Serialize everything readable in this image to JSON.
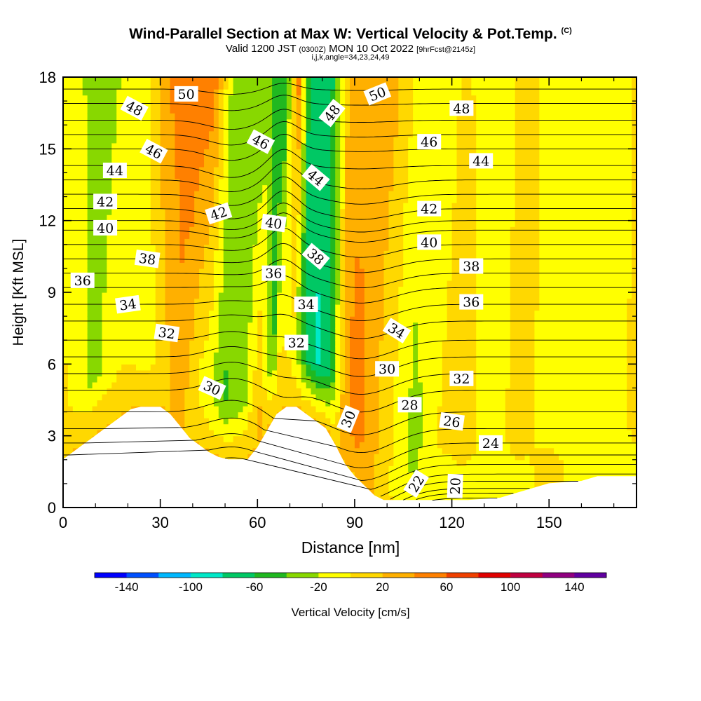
{
  "header": {
    "title": "Wind-Parallel Section at Max W: Vertical Velocity & Pot.Temp.",
    "copyright": "(C)",
    "valid_a": "Valid 1200 JST ",
    "valid_b": "(0300Z)",
    "valid_c": " MON 10 Oct 2022 ",
    "valid_d": "[9hrFcst@2145z]",
    "params": "i,j,k,angle=34,23,24,49"
  },
  "chart_data": {
    "type": "heatmap",
    "xlabel": "Distance [nm]",
    "ylabel": "Height [Kft MSL]",
    "xlim": [
      0,
      177
    ],
    "ylim": [
      0,
      18
    ],
    "x_ticks": [
      0,
      30,
      60,
      90,
      120,
      150
    ],
    "y_ticks": [
      0,
      3,
      6,
      9,
      12,
      15,
      18
    ],
    "x_tick_labels": [
      "0",
      "30",
      "60",
      "90",
      "120",
      "150"
    ],
    "y_tick_labels": [
      "0",
      "3",
      "6",
      "9",
      "12",
      "15",
      "18"
    ],
    "colorbar": {
      "label": "Vertical Velocity [cm/s]",
      "min": -160,
      "max": 160,
      "step": 20,
      "tick_labels": [
        "-140",
        "-100",
        "-60",
        "-20",
        "20",
        "60",
        "100",
        "140"
      ],
      "tick_values": [
        -140,
        -100,
        -60,
        -20,
        20,
        60,
        100,
        140
      ],
      "colors": [
        "#0000ff",
        "#0050ff",
        "#00b8ff",
        "#00e8c8",
        "#00c864",
        "#20b820",
        "#88d800",
        "#ffff00",
        "#ffd800",
        "#ffb000",
        "#ff8000",
        "#f04000",
        "#e00000",
        "#c00040",
        "#900080",
        "#6000a0"
      ]
    },
    "terrain": [
      [
        0,
        2
      ],
      [
        3,
        2.3
      ],
      [
        6,
        2.6
      ],
      [
        9,
        2.9
      ],
      [
        12,
        3.2
      ],
      [
        15,
        3.5
      ],
      [
        18,
        3.8
      ],
      [
        21,
        4.1
      ],
      [
        24,
        4.2
      ],
      [
        30,
        4.2
      ],
      [
        33,
        3.9
      ],
      [
        36,
        3.4
      ],
      [
        39,
        2.9
      ],
      [
        42,
        2.6
      ],
      [
        45,
        2.3
      ],
      [
        48,
        2.1
      ],
      [
        51,
        2
      ],
      [
        57,
        2
      ],
      [
        60,
        2.5
      ],
      [
        63,
        3.2
      ],
      [
        66,
        3.9
      ],
      [
        69,
        4.2
      ],
      [
        72,
        4.2
      ],
      [
        75,
        3.9
      ],
      [
        78,
        3.6
      ],
      [
        81,
        3.3
      ],
      [
        84,
        2.6
      ],
      [
        87,
        1.8
      ],
      [
        90,
        1.3
      ],
      [
        93,
        0.9
      ],
      [
        96,
        0.5
      ],
      [
        99,
        0.3
      ],
      [
        105,
        0.3
      ],
      [
        115,
        0.3
      ],
      [
        125,
        0.3
      ],
      [
        135,
        0.4
      ],
      [
        140,
        0.6
      ],
      [
        145,
        0.8
      ],
      [
        150,
        1
      ],
      [
        160,
        1.1
      ],
      [
        165,
        1.3
      ],
      [
        177,
        1.3
      ]
    ],
    "w_field": {
      "base_profile": [
        [
          0,
          5
        ],
        [
          8,
          -25
        ],
        [
          18,
          5
        ],
        [
          26,
          -25
        ],
        [
          35,
          25
        ],
        [
          42,
          -30
        ],
        [
          49,
          -50
        ],
        [
          55,
          -30
        ],
        [
          60,
          40
        ],
        [
          64,
          -40
        ],
        [
          66,
          40
        ],
        [
          70,
          -40
        ],
        [
          74,
          -60
        ],
        [
          78,
          -90
        ],
        [
          82,
          -60
        ],
        [
          86,
          30
        ],
        [
          90,
          70
        ],
        [
          94,
          30
        ],
        [
          98,
          15
        ],
        [
          104,
          -20
        ],
        [
          108,
          -30
        ],
        [
          116,
          5
        ],
        [
          124,
          10
        ],
        [
          132,
          -10
        ],
        [
          140,
          10
        ],
        [
          150,
          -10
        ],
        [
          160,
          5
        ],
        [
          170,
          -10
        ],
        [
          177,
          10
        ]
      ],
      "upper_profile": [
        [
          0,
          -10
        ],
        [
          8,
          -30
        ],
        [
          22,
          -10
        ],
        [
          30,
          40
        ],
        [
          38,
          60
        ],
        [
          44,
          50
        ],
        [
          50,
          -30
        ],
        [
          56,
          -35
        ],
        [
          62,
          -40
        ],
        [
          66,
          -60
        ],
        [
          70,
          50
        ],
        [
          74,
          -80
        ],
        [
          80,
          -70
        ],
        [
          86,
          30
        ],
        [
          92,
          20
        ],
        [
          100,
          25
        ],
        [
          108,
          -10
        ],
        [
          114,
          -15
        ],
        [
          122,
          5
        ],
        [
          132,
          -20
        ],
        [
          140,
          10
        ],
        [
          150,
          -10
        ],
        [
          160,
          -20
        ],
        [
          168,
          -15
        ],
        [
          177,
          10
        ]
      ],
      "column_tilt_nm_per_kft": 1.0,
      "near_surface_w": [
        [
          96,
          20
        ],
        [
          104,
          -10
        ],
        [
          112,
          -20
        ],
        [
          120,
          -15
        ],
        [
          130,
          -10
        ],
        [
          140,
          -15
        ],
        [
          150,
          15
        ],
        [
          160,
          -15
        ],
        [
          170,
          -10
        ]
      ]
    },
    "theta_contours": {
      "min": 20,
      "max": 51,
      "interval": 1,
      "labeled": [
        20,
        22,
        24,
        26,
        28,
        30,
        32,
        34,
        36,
        38,
        40,
        42,
        44,
        46,
        48,
        50
      ],
      "reference_heights": [
        [
          20,
          0.4
        ],
        [
          21,
          0.6
        ],
        [
          22,
          0.8
        ],
        [
          23,
          1.1
        ],
        [
          24,
          1.4
        ],
        [
          25,
          1.8
        ],
        [
          26,
          2.2
        ],
        [
          27,
          2.7
        ],
        [
          28,
          3.3
        ],
        [
          29,
          4
        ],
        [
          30,
          4.9
        ],
        [
          31,
          5.6
        ],
        [
          32,
          6.3
        ],
        [
          33,
          7
        ],
        [
          34,
          7.8
        ],
        [
          35,
          8.5
        ],
        [
          36,
          9.2
        ],
        [
          37,
          9.8
        ],
        [
          38,
          10.4
        ],
        [
          39,
          11
        ],
        [
          40,
          11.6
        ],
        [
          41,
          12
        ],
        [
          42,
          12.5
        ],
        [
          43,
          13.1
        ],
        [
          44,
          13.7
        ],
        [
          45,
          14.3
        ],
        [
          46,
          15
        ],
        [
          47,
          15.6
        ],
        [
          48,
          16.2
        ],
        [
          49,
          16.9
        ],
        [
          50,
          17.5
        ],
        [
          51,
          18.2
        ]
      ]
    },
    "contour_labels": [
      {
        "text": "50",
        "x": 38,
        "y": 17.3,
        "angle": 0
      },
      {
        "text": "48",
        "x": 22,
        "y": 16.7,
        "angle": 28
      },
      {
        "text": "46",
        "x": 28,
        "y": 14.9,
        "angle": 28
      },
      {
        "text": "44",
        "x": 16,
        "y": 14.1,
        "angle": 0
      },
      {
        "text": "42",
        "x": 13,
        "y": 12.8,
        "angle": 0
      },
      {
        "text": "40",
        "x": 13,
        "y": 11.7,
        "angle": 0
      },
      {
        "text": "38",
        "x": 26,
        "y": 10.4,
        "angle": 8
      },
      {
        "text": "36",
        "x": 6,
        "y": 9.5,
        "angle": 0
      },
      {
        "text": "34",
        "x": 20,
        "y": 8.5,
        "angle": -8
      },
      {
        "text": "32",
        "x": 32,
        "y": 7.3,
        "angle": 8
      },
      {
        "text": "30",
        "x": 46,
        "y": 5,
        "angle": 24
      },
      {
        "text": "46",
        "x": 61,
        "y": 15.3,
        "angle": 28
      },
      {
        "text": "42",
        "x": 48,
        "y": 12.3,
        "angle": -18
      },
      {
        "text": "40",
        "x": 65,
        "y": 11.9,
        "angle": 8
      },
      {
        "text": "36",
        "x": 65,
        "y": 9.8,
        "angle": 0
      },
      {
        "text": "32",
        "x": 72,
        "y": 6.9,
        "angle": 0
      },
      {
        "text": "48",
        "x": 83,
        "y": 16.5,
        "angle": -52
      },
      {
        "text": "44",
        "x": 78,
        "y": 13.8,
        "angle": 40
      },
      {
        "text": "38",
        "x": 78,
        "y": 10.5,
        "angle": 40
      },
      {
        "text": "34",
        "x": 75,
        "y": 8.5,
        "angle": 0
      },
      {
        "text": "30",
        "x": 88,
        "y": 3.7,
        "angle": -68
      },
      {
        "text": "50",
        "x": 97,
        "y": 17.3,
        "angle": -22
      },
      {
        "text": "30",
        "x": 100,
        "y": 5.8,
        "angle": 0
      },
      {
        "text": "34",
        "x": 103,
        "y": 7.4,
        "angle": 32
      },
      {
        "text": "28",
        "x": 107,
        "y": 4.3,
        "angle": 0
      },
      {
        "text": "26",
        "x": 120,
        "y": 3.6,
        "angle": 8
      },
      {
        "text": "24",
        "x": 132,
        "y": 2.7,
        "angle": 0
      },
      {
        "text": "22",
        "x": 109,
        "y": 1,
        "angle": -58
      },
      {
        "text": "20",
        "x": 121,
        "y": 0.9,
        "angle": -88
      },
      {
        "text": "48",
        "x": 123,
        "y": 16.7,
        "angle": 0
      },
      {
        "text": "46",
        "x": 113,
        "y": 15.3,
        "angle": 0
      },
      {
        "text": "44",
        "x": 129,
        "y": 14.5,
        "angle": 0
      },
      {
        "text": "42",
        "x": 113,
        "y": 12.5,
        "angle": 0
      },
      {
        "text": "40",
        "x": 113,
        "y": 11.1,
        "angle": 0
      },
      {
        "text": "38",
        "x": 126,
        "y": 10.1,
        "angle": 0
      },
      {
        "text": "36",
        "x": 126,
        "y": 8.6,
        "angle": 0
      },
      {
        "text": "32",
        "x": 123,
        "y": 5.4,
        "angle": 0
      }
    ]
  }
}
